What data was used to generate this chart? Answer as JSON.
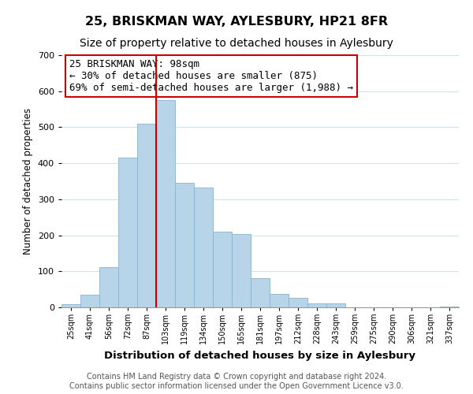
{
  "title": "25, BRISKMAN WAY, AYLESBURY, HP21 8FR",
  "subtitle": "Size of property relative to detached houses in Aylesbury",
  "xlabel": "Distribution of detached houses by size in Aylesbury",
  "ylabel": "Number of detached properties",
  "bar_labels": [
    "25sqm",
    "41sqm",
    "56sqm",
    "72sqm",
    "87sqm",
    "103sqm",
    "119sqm",
    "134sqm",
    "150sqm",
    "165sqm",
    "181sqm",
    "197sqm",
    "212sqm",
    "228sqm",
    "243sqm",
    "259sqm",
    "275sqm",
    "290sqm",
    "306sqm",
    "321sqm",
    "337sqm"
  ],
  "bar_values": [
    8,
    35,
    112,
    416,
    510,
    575,
    345,
    333,
    211,
    203,
    82,
    37,
    26,
    12,
    12,
    0,
    0,
    0,
    0,
    0,
    3
  ],
  "bar_color": "#b8d4e8",
  "bar_edge_color": "#8ab4cc",
  "vline_x": 5.0,
  "vline_color": "#cc0000",
  "ylim": [
    0,
    700
  ],
  "yticks": [
    0,
    100,
    200,
    300,
    400,
    500,
    600,
    700
  ],
  "annotation_text": "25 BRISKMAN WAY: 98sqm\n← 30% of detached houses are smaller (875)\n69% of semi-detached houses are larger (1,988) →",
  "footer_line1": "Contains HM Land Registry data © Crown copyright and database right 2024.",
  "footer_line2": "Contains public sector information licensed under the Open Government Licence v3.0.",
  "title_fontsize": 11.5,
  "subtitle_fontsize": 10,
  "xlabel_fontsize": 9.5,
  "ylabel_fontsize": 8.5,
  "annotation_fontsize": 9,
  "footer_fontsize": 7,
  "background_color": "#ffffff",
  "grid_color": "#d0e4f0",
  "box_edge_color": "#cc0000",
  "box_face_color": "#ffffff"
}
